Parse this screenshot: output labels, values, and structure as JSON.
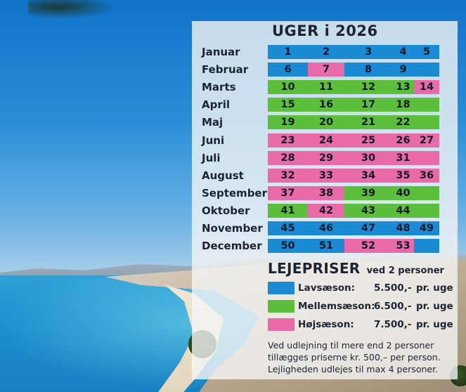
{
  "calendar": {
    "title": "UGER i 2026",
    "months": [
      {
        "name": "Januar",
        "weeks": [
          {
            "n": "1",
            "s": "low"
          },
          {
            "n": "2",
            "s": "low"
          },
          {
            "n": "3",
            "s": "low"
          },
          {
            "n": "4",
            "s": "low"
          },
          {
            "n": "5",
            "s": "low"
          }
        ]
      },
      {
        "name": "Februar",
        "weeks": [
          {
            "n": "6",
            "s": "low"
          },
          {
            "n": "7",
            "s": "high"
          },
          {
            "n": "8",
            "s": "low"
          },
          {
            "n": "9",
            "s": "low"
          },
          {
            "n": "",
            "s": "low"
          }
        ]
      },
      {
        "name": "Marts",
        "weeks": [
          {
            "n": "10",
            "s": "mid"
          },
          {
            "n": "11",
            "s": "mid"
          },
          {
            "n": "12",
            "s": "mid"
          },
          {
            "n": "13",
            "s": "mid"
          },
          {
            "n": "14",
            "s": "high"
          }
        ]
      },
      {
        "name": "April",
        "weeks": [
          {
            "n": "15",
            "s": "mid"
          },
          {
            "n": "16",
            "s": "mid"
          },
          {
            "n": "17",
            "s": "mid"
          },
          {
            "n": "18",
            "s": "mid"
          },
          {
            "n": "",
            "s": "mid"
          }
        ]
      },
      {
        "name": "Maj",
        "weeks": [
          {
            "n": "19",
            "s": "mid"
          },
          {
            "n": "20",
            "s": "mid"
          },
          {
            "n": "21",
            "s": "mid"
          },
          {
            "n": "22",
            "s": "mid"
          },
          {
            "n": "",
            "s": "mid"
          }
        ]
      },
      {
        "name": "Juni",
        "weeks": [
          {
            "n": "23",
            "s": "high"
          },
          {
            "n": "24",
            "s": "high"
          },
          {
            "n": "25",
            "s": "high"
          },
          {
            "n": "26",
            "s": "high"
          },
          {
            "n": "27",
            "s": "high"
          }
        ]
      },
      {
        "name": "Juli",
        "weeks": [
          {
            "n": "28",
            "s": "high"
          },
          {
            "n": "29",
            "s": "high"
          },
          {
            "n": "30",
            "s": "high"
          },
          {
            "n": "31",
            "s": "high"
          },
          {
            "n": "",
            "s": "high"
          }
        ]
      },
      {
        "name": "August",
        "weeks": [
          {
            "n": "32",
            "s": "high"
          },
          {
            "n": "33",
            "s": "high"
          },
          {
            "n": "34",
            "s": "high"
          },
          {
            "n": "35",
            "s": "high"
          },
          {
            "n": "36",
            "s": "high"
          }
        ]
      },
      {
        "name": "September",
        "weeks": [
          {
            "n": "37",
            "s": "high"
          },
          {
            "n": "38",
            "s": "high"
          },
          {
            "n": "39",
            "s": "mid"
          },
          {
            "n": "40",
            "s": "mid"
          },
          {
            "n": "",
            "s": "mid"
          }
        ]
      },
      {
        "name": "Oktober",
        "weeks": [
          {
            "n": "41",
            "s": "mid"
          },
          {
            "n": "42",
            "s": "high"
          },
          {
            "n": "43",
            "s": "mid"
          },
          {
            "n": "44",
            "s": "mid"
          },
          {
            "n": "",
            "s": "mid"
          }
        ]
      },
      {
        "name": "November",
        "weeks": [
          {
            "n": "45",
            "s": "low"
          },
          {
            "n": "46",
            "s": "low"
          },
          {
            "n": "47",
            "s": "low"
          },
          {
            "n": "48",
            "s": "low"
          },
          {
            "n": "49",
            "s": "low"
          }
        ]
      },
      {
        "name": "December",
        "weeks": [
          {
            "n": "50",
            "s": "low"
          },
          {
            "n": "51",
            "s": "low"
          },
          {
            "n": "52",
            "s": "high"
          },
          {
            "n": "53",
            "s": "high"
          },
          {
            "n": "",
            "s": "low"
          }
        ]
      }
    ]
  },
  "prices": {
    "title": "LEJEPRISER",
    "subtitle": "ved 2 personer",
    "rows": [
      {
        "season": "low",
        "label": "Lavsæson:",
        "price": "5.500,-",
        "unit": "pr. uge"
      },
      {
        "season": "mid",
        "label": "Mellemsæson:",
        "price": "6.500,-",
        "unit": "pr. uge"
      },
      {
        "season": "high",
        "label": "Højsæson:",
        "price": "7.500,-",
        "unit": "pr. uge"
      }
    ]
  },
  "notes": [
    "Ved udlejning til mere end 2 personer",
    "tillægges priserne kr. 500,–  per person.",
    "Lejligheden udlejes til max 4 personer."
  ],
  "colors": {
    "low": "#1a8ad4",
    "mid": "#5cbf3c",
    "high": "#e86aa8",
    "text": "#1c2333"
  }
}
